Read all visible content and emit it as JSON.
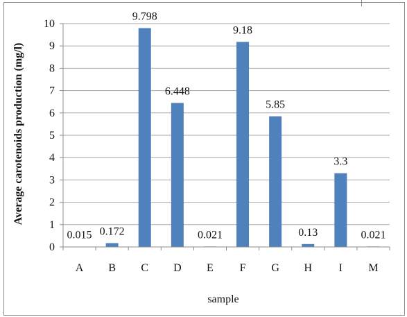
{
  "chart_data": {
    "type": "bar",
    "categories": [
      "A",
      "B",
      "C",
      "D",
      "E",
      "F",
      "G",
      "H",
      "I",
      "M"
    ],
    "values": [
      0.015,
      0.172,
      9.798,
      6.448,
      0.021,
      9.18,
      5.85,
      0.13,
      3.3,
      0.021
    ],
    "data_labels": [
      "0.015",
      "0.172",
      "9.798",
      "6.448",
      "0.021",
      "9.18",
      "5.85",
      "0.13",
      "3.3",
      "0.021"
    ],
    "title": "",
    "xlabel": "sample",
    "ylabel": "Average carotenoids production (mg/l)",
    "ylim": [
      0,
      10
    ],
    "yticks": [
      0,
      1,
      2,
      3,
      4,
      5,
      6,
      7,
      8,
      9,
      10
    ],
    "grid": true,
    "legend": "none",
    "colors": {
      "bar": "#4f81bd",
      "grid": "#a6a6a6",
      "axis": "#8c8c8c"
    }
  }
}
